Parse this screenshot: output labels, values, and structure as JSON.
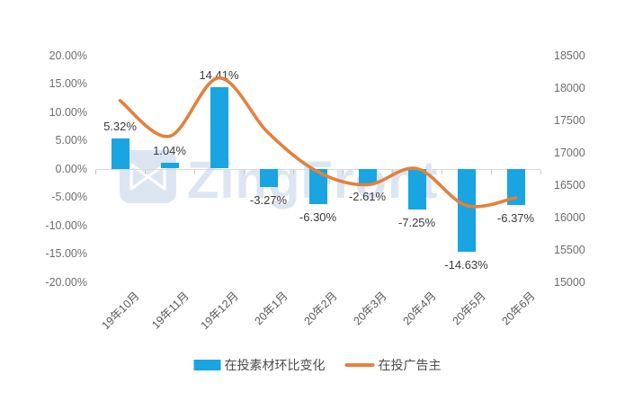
{
  "watermark": {
    "text": "ZingFront",
    "logo_icon": "zingfront-bowtie-logo"
  },
  "colors": {
    "bar": "#18a5e1",
    "line": "#e5803c",
    "watermark": "#dce6f2",
    "axis_text": "#6e6e6e",
    "label_text": "#3a3a3a",
    "baseline": "#d9d9d9"
  },
  "chart_data": {
    "type": "combo-bar-line",
    "categories": [
      "19年10月",
      "19年11月",
      "19年12月",
      "20年1月",
      "20年2月",
      "20年3月",
      "20年4月",
      "20年5月",
      "20年6月"
    ],
    "series": [
      {
        "name": "在投素材环比变化",
        "type": "bar",
        "axis": "left",
        "values": [
          5.32,
          1.04,
          14.41,
          -3.27,
          -6.3,
          -2.61,
          -7.25,
          -14.63,
          -6.37
        ],
        "labels": [
          "5.32%",
          "1.04%",
          "14.41%",
          "-3.27%",
          "-6.30%",
          "-2.61%",
          "-7.25%",
          "-14.63%",
          "-6.37%"
        ]
      },
      {
        "name": "在投广告主",
        "type": "line",
        "axis": "right",
        "smooth": true,
        "values": [
          17800,
          17250,
          18150,
          17300,
          16700,
          16500,
          16750,
          16180,
          16300
        ]
      }
    ],
    "left_axis": {
      "min": -20,
      "max": 20,
      "ticks": [
        "20.00%",
        "15.00%",
        "10.00%",
        "5.00%",
        "0.00%",
        "-5.00%",
        "-10.00%",
        "-15.00%",
        "-20.00%"
      ]
    },
    "right_axis": {
      "min": 15000,
      "max": 18500,
      "ticks": [
        "18500",
        "18000",
        "17500",
        "17000",
        "16500",
        "16000",
        "15500",
        "15000"
      ]
    },
    "grid": false,
    "legend_position": "bottom"
  }
}
